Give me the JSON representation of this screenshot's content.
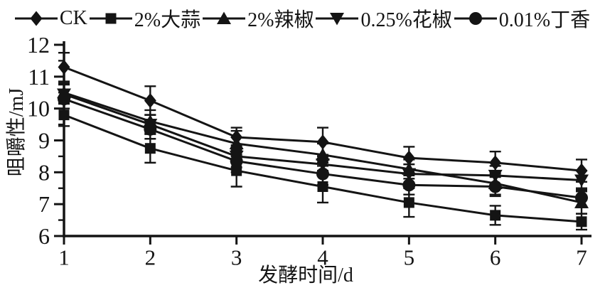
{
  "figure": {
    "background": "#ffffff",
    "ink_color": "#141414"
  },
  "chart_data": {
    "type": "line",
    "title": "",
    "xlabel": "发酵时间/d",
    "ylabel": "咀嚼性/mJ",
    "x": [
      1,
      2,
      3,
      4,
      5,
      6,
      7
    ],
    "x_tick_labels": [
      "1",
      "2",
      "3",
      "4",
      "5",
      "6",
      "7"
    ],
    "xlim": [
      1,
      7
    ],
    "ylim": [
      6,
      12
    ],
    "y_major_ticks": [
      6,
      7,
      8,
      9,
      10,
      11,
      12
    ],
    "y_minor_tick_step": 0.5,
    "grid": false,
    "error_bars": true,
    "legend_position": "top-center",
    "series": [
      {
        "name": "CK",
        "marker": "diamond",
        "values": [
          11.3,
          10.25,
          9.1,
          8.95,
          8.45,
          8.3,
          8.05
        ],
        "errors": [
          0.45,
          0.45,
          0.3,
          0.45,
          0.35,
          0.35,
          0.35
        ]
      },
      {
        "name": "2%大蒜",
        "marker": "square",
        "values": [
          9.8,
          8.75,
          8.05,
          7.55,
          7.05,
          6.65,
          6.45
        ],
        "errors": [
          0.35,
          0.45,
          0.5,
          0.5,
          0.45,
          0.3,
          0.25
        ]
      },
      {
        "name": "2%辣椒",
        "marker": "triangle-up",
        "values": [
          10.5,
          9.6,
          8.9,
          8.55,
          8.1,
          7.65,
          7.05
        ],
        "errors": [
          0.3,
          0.35,
          0.4,
          0.35,
          0.3,
          0.35,
          0.35
        ]
      },
      {
        "name": "0.25%花椒",
        "marker": "triangle-down",
        "values": [
          10.45,
          9.5,
          8.5,
          8.25,
          7.95,
          7.9,
          7.75
        ],
        "errors": [
          0.3,
          0.3,
          0.35,
          0.3,
          0.3,
          0.3,
          0.3
        ]
      },
      {
        "name": "0.01%丁香",
        "marker": "circle",
        "values": [
          10.3,
          9.35,
          8.35,
          7.95,
          7.6,
          7.55,
          7.2
        ],
        "errors": [
          0.3,
          0.3,
          0.35,
          0.35,
          0.3,
          0.3,
          0.3
        ]
      }
    ]
  }
}
